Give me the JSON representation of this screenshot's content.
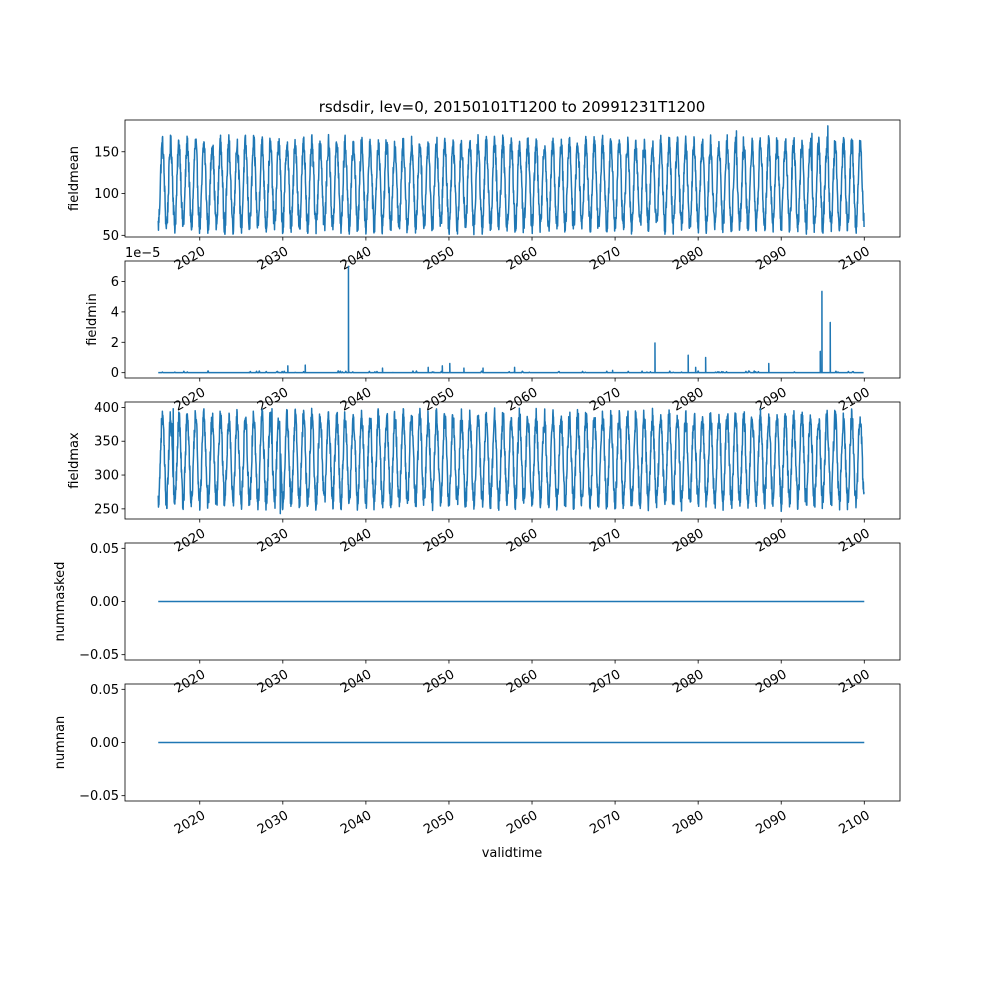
{
  "figure": {
    "title": "rsdsdir, lev=0, 20150101T1200 to 20991231T1200",
    "xlabel": "validtime",
    "line_color": "#1f77b4"
  },
  "chart_data": [
    {
      "type": "line",
      "ylabel": "fieldmean",
      "x_range": [
        "2015-01-01",
        "2099-12-31"
      ],
      "xlim": [
        2011.0,
        2104.3
      ],
      "ylim": [
        48,
        188
      ],
      "yticks": [
        50,
        100,
        150
      ],
      "ytick_labels": [
        "50",
        "100",
        "150"
      ],
      "xticks": [
        2020,
        2030,
        2040,
        2050,
        2060,
        2070,
        2080,
        2090,
        2100
      ],
      "xtick_labels": [
        "2020",
        "2030",
        "2040",
        "2050",
        "2060",
        "2070",
        "2080",
        "2090",
        "2100"
      ],
      "pattern": {
        "kind": "seasonal",
        "min": 58,
        "max": 163,
        "period_years": 1
      },
      "peaks": [
        {
          "x": 2084.6,
          "y": 175
        },
        {
          "x": 2095.6,
          "y": 181
        },
        {
          "x": 2093.7,
          "y": 172
        }
      ]
    },
    {
      "type": "line",
      "ylabel": "fieldmin",
      "offset_text": "1e−5",
      "x_range": [
        "2015-01-01",
        "2099-12-31"
      ],
      "xlim": [
        2011.0,
        2104.3
      ],
      "ylim": [
        -0.35,
        7.35
      ],
      "yticks": [
        0,
        2,
        4,
        6
      ],
      "ytick_labels": [
        "0",
        "2",
        "4",
        "6"
      ],
      "xticks": [
        2020,
        2030,
        2040,
        2050,
        2060,
        2070,
        2080,
        2090,
        2100
      ],
      "xtick_labels": [
        "2020",
        "2030",
        "2040",
        "2050",
        "2060",
        "2070",
        "2080",
        "2090",
        "2100"
      ],
      "pattern": {
        "kind": "baseline",
        "value": 0
      },
      "spikes": [
        {
          "x": 2030.6,
          "y": 0.45
        },
        {
          "x": 2032.7,
          "y": 0.5
        },
        {
          "x": 2037.9,
          "y": 7.0
        },
        {
          "x": 2042.0,
          "y": 0.3
        },
        {
          "x": 2047.5,
          "y": 0.35
        },
        {
          "x": 2049.2,
          "y": 0.45
        },
        {
          "x": 2050.1,
          "y": 0.6
        },
        {
          "x": 2051.8,
          "y": 0.3
        },
        {
          "x": 2054.1,
          "y": 0.3
        },
        {
          "x": 2057.9,
          "y": 0.35
        },
        {
          "x": 2069.7,
          "y": 0.15
        },
        {
          "x": 2074.8,
          "y": 1.95
        },
        {
          "x": 2078.8,
          "y": 1.15
        },
        {
          "x": 2079.7,
          "y": 0.35
        },
        {
          "x": 2080.9,
          "y": 1.0
        },
        {
          "x": 2088.5,
          "y": 0.6
        },
        {
          "x": 2094.7,
          "y": 1.4
        },
        {
          "x": 2094.9,
          "y": 5.35
        },
        {
          "x": 2095.9,
          "y": 3.3
        }
      ]
    },
    {
      "type": "line",
      "ylabel": "fieldmax",
      "x_range": [
        "2015-01-01",
        "2099-12-31"
      ],
      "xlim": [
        2011.0,
        2104.3
      ],
      "ylim": [
        235,
        408
      ],
      "yticks": [
        250,
        300,
        350,
        400
      ],
      "ytick_labels": [
        "250",
        "300",
        "350",
        "400"
      ],
      "xticks": [
        2020,
        2030,
        2040,
        2050,
        2060,
        2070,
        2080,
        2090,
        2100
      ],
      "xtick_labels": [
        "2020",
        "2030",
        "2040",
        "2050",
        "2060",
        "2070",
        "2080",
        "2090",
        "2100"
      ],
      "pattern": {
        "kind": "seasonal",
        "min": 256,
        "max": 390,
        "period_years": 1
      },
      "peaks": [
        {
          "x": 2016.8,
          "y": 398
        },
        {
          "x": 2028.7,
          "y": 398
        },
        {
          "x": 2029.7,
          "y": 243
        }
      ]
    },
    {
      "type": "line",
      "ylabel": "nummasked",
      "x_range": [
        "2015-01-01",
        "2099-12-31"
      ],
      "xlim": [
        2011.0,
        2104.3
      ],
      "ylim": [
        -0.055,
        0.055
      ],
      "yticks": [
        -0.05,
        0.0,
        0.05
      ],
      "ytick_labels": [
        "−0.05",
        "0.00",
        "0.05"
      ],
      "xticks": [
        2020,
        2030,
        2040,
        2050,
        2060,
        2070,
        2080,
        2090,
        2100
      ],
      "xtick_labels": [
        "2020",
        "2030",
        "2040",
        "2050",
        "2060",
        "2070",
        "2080",
        "2090",
        "2100"
      ],
      "pattern": {
        "kind": "constant",
        "value": 0
      }
    },
    {
      "type": "line",
      "ylabel": "numnan",
      "x_range": [
        "2015-01-01",
        "2099-12-31"
      ],
      "xlim": [
        2011.0,
        2104.3
      ],
      "ylim": [
        -0.055,
        0.055
      ],
      "yticks": [
        -0.05,
        0.0,
        0.05
      ],
      "ytick_labels": [
        "−0.05",
        "0.00",
        "0.05"
      ],
      "xticks": [
        2020,
        2030,
        2040,
        2050,
        2060,
        2070,
        2080,
        2090,
        2100
      ],
      "xtick_labels": [
        "2020",
        "2030",
        "2040",
        "2050",
        "2060",
        "2070",
        "2080",
        "2090",
        "2100"
      ],
      "pattern": {
        "kind": "constant",
        "value": 0
      }
    }
  ]
}
